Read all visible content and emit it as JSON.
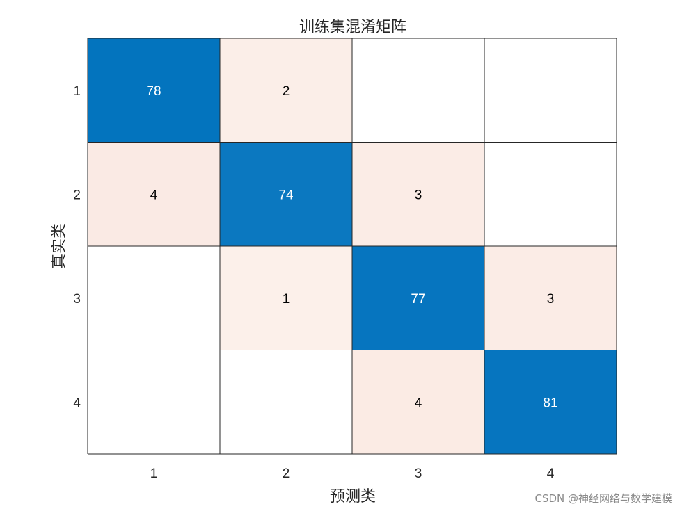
{
  "chart_data": {
    "type": "heatmap",
    "title": "训练集混淆矩阵",
    "xlabel": "预测类",
    "ylabel": "真实类",
    "x_categories": [
      "1",
      "2",
      "3",
      "4"
    ],
    "y_categories": [
      "1",
      "2",
      "3",
      "4"
    ],
    "matrix": [
      [
        78,
        2,
        null,
        null
      ],
      [
        4,
        74,
        3,
        null
      ],
      [
        null,
        1,
        77,
        3
      ],
      [
        null,
        null,
        4,
        81
      ]
    ],
    "colors": {
      "diagonal": "#0072BD",
      "off_diagonal": "#D95319",
      "grid": "#262626"
    }
  },
  "watermark": "CSDN @神经网络与数学建模"
}
